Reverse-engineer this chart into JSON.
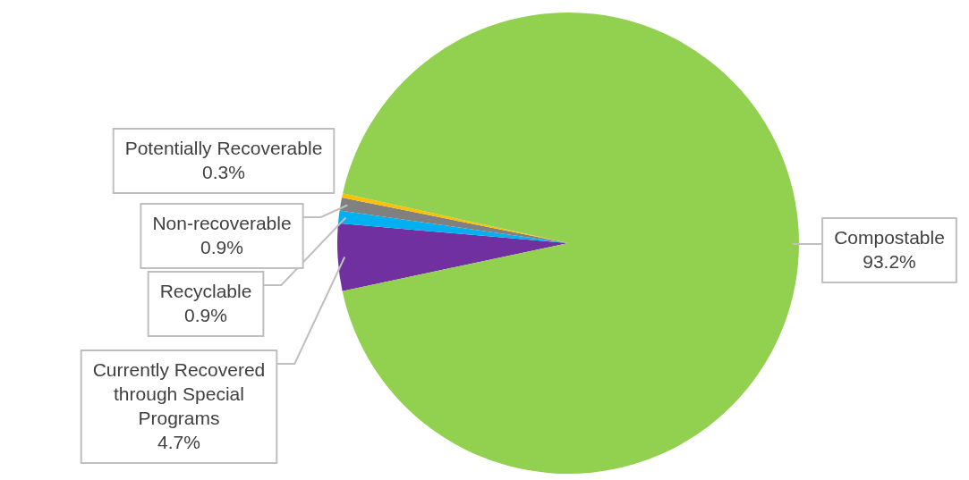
{
  "chart_data": {
    "type": "pie",
    "categories": [
      "Currently Recovered through Special Programs",
      "Recyclable",
      "Non-recoverable",
      "Potentially Recoverable",
      "Compostable"
    ],
    "values": [
      4.7,
      0.9,
      0.9,
      0.3,
      93.2
    ],
    "value_labels": [
      "4.7%",
      "0.9%",
      "0.9%",
      "0.3%",
      "93.2%"
    ],
    "colors": [
      "#7030a0",
      "#00b0f0",
      "#808080",
      "#ffc000",
      "#92d050"
    ],
    "legend": false
  }
}
